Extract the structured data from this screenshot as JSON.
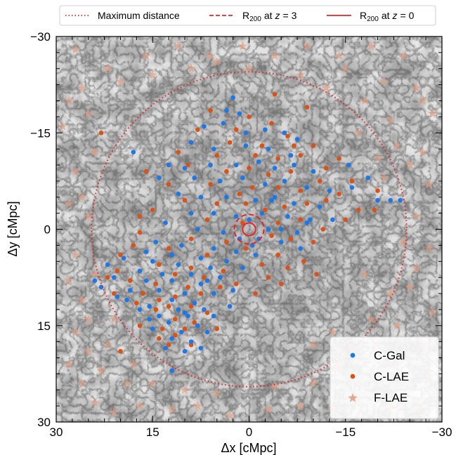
{
  "chart_data": {
    "type": "scatter",
    "title": "",
    "xlabel": "Δx [cMpc]",
    "ylabel": "Δy [cMpc]",
    "xlim": [
      30,
      -30
    ],
    "ylim": [
      -30,
      30
    ],
    "x_ticks": [
      30,
      15,
      0,
      -15,
      -30
    ],
    "y_ticks": [
      -30,
      -15,
      0,
      15,
      30
    ],
    "x_tick_labels": [
      "30",
      "15",
      "0",
      "−15",
      "−30"
    ],
    "y_tick_labels": [
      "−30",
      "−15",
      "0",
      "15",
      "30"
    ],
    "x_inverted": true,
    "y_inverted": true,
    "background": "grayscale dark-matter density map",
    "circles": [
      {
        "name": "Maximum distance",
        "radius": 24.5,
        "center": [
          0,
          0
        ],
        "style": "dotted",
        "color": "#e3242b"
      },
      {
        "name": "R₂₀₀ at z = 3",
        "radius": 2.3,
        "center": [
          0,
          0
        ],
        "style": "dashed",
        "color": "#e3242b"
      },
      {
        "name": "R₂₀₀ at z = 0",
        "radius": 1.0,
        "center": [
          0,
          0
        ],
        "style": "solid",
        "color": "#e3242b"
      }
    ],
    "series": [
      {
        "name": "C-Gal",
        "marker": "circle",
        "color": "#1f77e6",
        "points": [
          [
            2.5,
            -20.5
          ],
          [
            3.5,
            -18.5
          ],
          [
            1.5,
            -18
          ],
          [
            7,
            -16
          ],
          [
            4,
            -16.5
          ],
          [
            0.5,
            -15
          ],
          [
            -2.5,
            -15.5
          ],
          [
            -5.5,
            -15
          ],
          [
            -7.5,
            -14
          ],
          [
            9,
            -13.5
          ],
          [
            5.5,
            -12.5
          ],
          [
            0.5,
            -13
          ],
          [
            -3,
            -12.5
          ],
          [
            -6.5,
            -11.5
          ],
          [
            18,
            -12
          ],
          [
            12.5,
            -10
          ],
          [
            10,
            -9.5
          ],
          [
            6,
            -10
          ],
          [
            2,
            -10
          ],
          [
            -1.5,
            -10.5
          ],
          [
            -4,
            -9.5
          ],
          [
            -7,
            -10
          ],
          [
            -10,
            -9
          ],
          [
            -15.5,
            -10
          ],
          [
            -18.5,
            -8
          ],
          [
            14,
            -8
          ],
          [
            8.5,
            -8
          ],
          [
            4.5,
            -7.5
          ],
          [
            1,
            -8
          ],
          [
            -2.5,
            -7
          ],
          [
            -5.5,
            -7.5
          ],
          [
            -9,
            -6.5
          ],
          [
            -12.5,
            -6
          ],
          [
            -20,
            -4.5
          ],
          [
            -23.5,
            -4.5
          ],
          [
            11,
            -5.5
          ],
          [
            7.5,
            -5
          ],
          [
            3.5,
            -5
          ],
          [
            -1,
            -4.5
          ],
          [
            -4,
            -5
          ],
          [
            -7,
            -4
          ],
          [
            -11,
            -3.5
          ],
          [
            9,
            -2.5
          ],
          [
            5.5,
            -2.5
          ],
          [
            2,
            -2
          ],
          [
            -2,
            -2.5
          ],
          [
            -6,
            -2
          ],
          [
            -9.5,
            -1.5
          ],
          [
            -13,
            -1.5
          ],
          [
            13,
            -1
          ],
          [
            8,
            0
          ],
          [
            4,
            0.5
          ],
          [
            -3,
            0
          ],
          [
            -7.5,
            0.5
          ],
          [
            1.5,
            1.5
          ],
          [
            -0.5,
            2.5
          ],
          [
            -5,
            2
          ],
          [
            14.5,
            2
          ],
          [
            10.5,
            2.5
          ],
          [
            5.5,
            3
          ],
          [
            2,
            3.5
          ],
          [
            -1,
            4
          ],
          [
            -8,
            3
          ],
          [
            16,
            3.5
          ],
          [
            12,
            4
          ],
          [
            7.5,
            4.5
          ],
          [
            3.5,
            5
          ],
          [
            19.5,
            4.5
          ],
          [
            15,
            5
          ],
          [
            11,
            5.5
          ],
          [
            6,
            6
          ],
          [
            1,
            6
          ],
          [
            22,
            5.5
          ],
          [
            17,
            6.5
          ],
          [
            13.5,
            7
          ],
          [
            9,
            7
          ],
          [
            4.5,
            7.5
          ],
          [
            21,
            7.5
          ],
          [
            16,
            8
          ],
          [
            12,
            8
          ],
          [
            7.5,
            8.5
          ],
          [
            23,
            9
          ],
          [
            18.5,
            9.5
          ],
          [
            14,
            9.5
          ],
          [
            10,
            10
          ],
          [
            5.5,
            10
          ],
          [
            19,
            11
          ],
          [
            12,
            11
          ],
          [
            8.5,
            11.5
          ],
          [
            15.5,
            12
          ],
          [
            11,
            12.5
          ],
          [
            7,
            12.5
          ],
          [
            14,
            13.5
          ],
          [
            9.5,
            13.5
          ],
          [
            5.5,
            13.5
          ],
          [
            12.5,
            14.5
          ],
          [
            8,
            15
          ],
          [
            15,
            15.5
          ],
          [
            10.5,
            16
          ],
          [
            6.5,
            16
          ],
          [
            12,
            17
          ],
          [
            9,
            17.5
          ],
          [
            13,
            18.5
          ],
          [
            10,
            19
          ],
          [
            7.5,
            18.5
          ],
          [
            12,
            22
          ],
          [
            24,
            8
          ],
          [
            20.5,
            10.5
          ],
          [
            17,
            12.5
          ],
          [
            3,
            12
          ],
          [
            -22,
            -4.5
          ],
          [
            -16,
            -6.5
          ],
          [
            -3.5,
            -4.5
          ],
          [
            0,
            -1.5
          ],
          [
            -5,
            0
          ],
          [
            6.5,
            8
          ],
          [
            2.5,
            9.5
          ],
          [
            -1.5,
            1.5
          ],
          [
            -9,
            -1
          ],
          [
            10,
            13
          ],
          [
            15.5,
            14
          ]
        ]
      },
      {
        "name": "C-LAE",
        "marker": "circle",
        "color": "#d95319",
        "points": [
          [
            -4,
            -21
          ],
          [
            -9,
            -19
          ],
          [
            6,
            -18.5
          ],
          [
            0,
            -17.5
          ],
          [
            -3.5,
            -16.5
          ],
          [
            8,
            -15.5
          ],
          [
            2,
            -15.5
          ],
          [
            -6,
            -14.5
          ],
          [
            -10,
            -13
          ],
          [
            -14,
            -11
          ],
          [
            11,
            -12
          ],
          [
            5,
            -11.5
          ],
          [
            -1,
            -11.5
          ],
          [
            -4.5,
            -11
          ],
          [
            -8,
            -11.5
          ],
          [
            -12,
            -9.5
          ],
          [
            16,
            -9
          ],
          [
            9.5,
            -10
          ],
          [
            3.5,
            -9
          ],
          [
            0,
            -9.5
          ],
          [
            -3,
            -8.5
          ],
          [
            -6.5,
            -9
          ],
          [
            -11,
            -7.5
          ],
          [
            -16,
            -7.5
          ],
          [
            -20,
            -6
          ],
          [
            12.5,
            -7
          ],
          [
            6,
            -7
          ],
          [
            -0.5,
            -6.5
          ],
          [
            -4.5,
            -6.5
          ],
          [
            -8,
            -6
          ],
          [
            -14,
            -5.5
          ],
          [
            -19.5,
            -3
          ],
          [
            10,
            -4.5
          ],
          [
            5,
            -4
          ],
          [
            0.5,
            -4
          ],
          [
            -2.5,
            -3
          ],
          [
            -5.5,
            -3.5
          ],
          [
            -9,
            -4
          ],
          [
            -17,
            -3
          ],
          [
            6.5,
            -1.5
          ],
          [
            1,
            -1
          ],
          [
            -4.5,
            -1
          ],
          [
            -8,
            -1.5
          ],
          [
            -11.5,
            0
          ],
          [
            -15,
            -1.5
          ],
          [
            -3.5,
            1
          ],
          [
            -6.5,
            1.5
          ],
          [
            -10,
            2
          ],
          [
            17,
            0.5
          ],
          [
            9,
            1.5
          ],
          [
            3.5,
            2
          ],
          [
            0.5,
            3
          ],
          [
            -4.5,
            4
          ],
          [
            -8.5,
            5
          ],
          [
            18,
            2.5
          ],
          [
            12.5,
            3
          ],
          [
            6.5,
            4
          ],
          [
            -2,
            5.5
          ],
          [
            -6,
            6
          ],
          [
            20,
            4
          ],
          [
            14,
            5.5
          ],
          [
            9,
            6
          ],
          [
            4,
            6.5
          ],
          [
            -3,
            7.5
          ],
          [
            20.5,
            6.5
          ],
          [
            11.5,
            7
          ],
          [
            7,
            7.5
          ],
          [
            2,
            8.5
          ],
          [
            18.5,
            8
          ],
          [
            14.5,
            8.5
          ],
          [
            9.5,
            9
          ],
          [
            4.5,
            9
          ],
          [
            21,
            10
          ],
          [
            16.5,
            10
          ],
          [
            11.5,
            10.5
          ],
          [
            7.5,
            10
          ],
          [
            17.5,
            11.5
          ],
          [
            12.5,
            12
          ],
          [
            9,
            12
          ],
          [
            14.5,
            12.5
          ],
          [
            6.5,
            13
          ],
          [
            11.5,
            14
          ],
          [
            8.5,
            14.5
          ],
          [
            13.5,
            15.5
          ],
          [
            10,
            15.5
          ],
          [
            17,
            15
          ],
          [
            11.5,
            16.5
          ],
          [
            14,
            17
          ],
          [
            9,
            18
          ],
          [
            12.5,
            18
          ],
          [
            20,
            19
          ],
          [
            17,
            -2
          ],
          [
            22,
            7.5
          ],
          [
            3,
            -13.5
          ],
          [
            -2,
            -13
          ],
          [
            1.5,
            -5.5
          ],
          [
            -7,
            -13
          ],
          [
            -12,
            -4.5
          ],
          [
            15,
            -3
          ],
          [
            23,
            -15
          ],
          [
            5,
            15.5
          ],
          [
            -1,
            10
          ],
          [
            14,
            11
          ],
          [
            -5,
            8.5
          ],
          [
            -10.5,
            7
          ]
        ]
      },
      {
        "name": "F-LAE",
        "marker": "star",
        "color": "#e39b7b",
        "points": [
          [
            27,
            -28
          ],
          [
            22,
            -25
          ],
          [
            26,
            -22
          ],
          [
            28,
            -20
          ],
          [
            25,
            -18
          ],
          [
            29,
            -16
          ],
          [
            24,
            -12
          ],
          [
            27,
            -9
          ],
          [
            28,
            -4
          ],
          [
            25,
            -2
          ],
          [
            27,
            4
          ],
          [
            28,
            8
          ],
          [
            26,
            11
          ],
          [
            25,
            14
          ],
          [
            27,
            16
          ],
          [
            28,
            21
          ],
          [
            26,
            24
          ],
          [
            24,
            27
          ],
          [
            21,
            28.5
          ],
          [
            17,
            27.5
          ],
          [
            12,
            28
          ],
          [
            8,
            27.5
          ],
          [
            3,
            29
          ],
          [
            -3,
            28
          ],
          [
            -8,
            27.5
          ],
          [
            -13,
            28
          ],
          [
            -17,
            26.5
          ],
          [
            -22,
            27.5
          ],
          [
            -26,
            28
          ],
          [
            -28,
            23
          ],
          [
            -27,
            18
          ],
          [
            -28.5,
            13
          ],
          [
            -25,
            9
          ],
          [
            -28,
            3
          ],
          [
            -26,
            -2
          ],
          [
            -28,
            -7
          ],
          [
            -27,
            -12
          ],
          [
            -28.5,
            -18
          ],
          [
            -26,
            -22
          ],
          [
            -24,
            -27
          ],
          [
            -19,
            -28.5
          ],
          [
            -14,
            -27
          ],
          [
            -9,
            -28.5
          ],
          [
            -4,
            -27
          ],
          [
            1,
            -28.5
          ],
          [
            6,
            -27
          ],
          [
            11,
            -28.5
          ],
          [
            16,
            -27
          ],
          [
            -21,
            -23
          ],
          [
            -18,
            -20
          ],
          [
            -22,
            -17
          ],
          [
            -17,
            -15
          ],
          [
            -23,
            -13
          ],
          [
            -25,
            -10
          ],
          [
            -21,
            -8
          ],
          [
            -18,
            7
          ],
          [
            -22,
            10
          ],
          [
            -19,
            14
          ],
          [
            -23,
            15
          ],
          [
            -20,
            18
          ],
          [
            -16,
            19
          ],
          [
            -23,
            21
          ],
          [
            22,
            18
          ],
          [
            25,
            19
          ],
          [
            21,
            14
          ],
          [
            23,
            22
          ],
          [
            19,
            24
          ],
          [
            15,
            24
          ],
          [
            10,
            25
          ],
          [
            5,
            25.5
          ],
          [
            -4,
            24.5
          ],
          [
            -10,
            24
          ],
          [
            -14,
            21.5
          ],
          [
            -19,
            22
          ],
          [
            -24,
            2
          ],
          [
            -20,
            -11
          ],
          [
            20,
            -23
          ],
          [
            15,
            -24
          ],
          [
            9,
            -25
          ],
          [
            -8,
            -24
          ],
          [
            -12,
            -22
          ],
          [
            -15,
            -25
          ],
          [
            5,
            -26
          ],
          [
            0,
            -25
          ],
          [
            24,
            7
          ],
          [
            -27,
            -20
          ],
          [
            -26,
            6
          ],
          [
            26,
            -5
          ],
          [
            -10,
            18
          ],
          [
            18,
            21
          ],
          [
            -13,
            16
          ]
        ]
      }
    ],
    "legend_top": [
      "Maximum distance",
      "R",
      "200",
      "at",
      "z",
      "= 3",
      "R",
      "200",
      "at",
      "z",
      "= 0"
    ],
    "legend_inside_position": "bottom-right"
  }
}
